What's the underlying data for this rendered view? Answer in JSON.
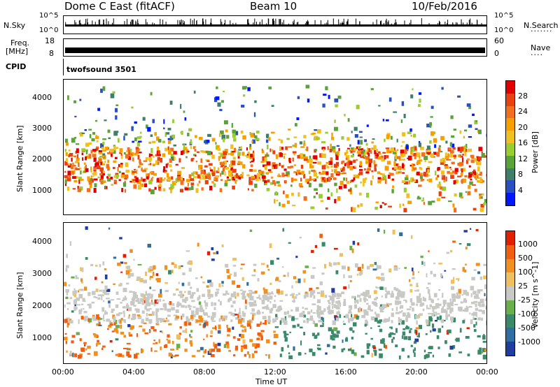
{
  "header": {
    "station": "Dome C East (fitACF)",
    "beam": "Beam 10",
    "date": "10/Feb/2016"
  },
  "strips": {
    "nsky_label": "N.Sky",
    "nsky_top": "10^5",
    "nsky_bottom": "10^0",
    "nsearch_label": "N.Search",
    "nsearch_top": "10^5",
    "nsearch_bottom": "10^0",
    "freq_label": "Freq.",
    "freq_unit": "[MHz]",
    "freq_top": "18",
    "freq_bottom": "8",
    "nave_label": "Nave",
    "nave_top": "60",
    "nave_bottom": "0",
    "cpid_label": "CPID",
    "cpid_value": "twofsound 3501"
  },
  "chart_data": [
    {
      "type": "heatmap",
      "title": "",
      "ylabel": "Slant Range [km]",
      "xlabel": "",
      "x_ticks": [
        "00:00",
        "04:00",
        "08:00",
        "12:00",
        "16:00",
        "20:00",
        "00:00"
      ],
      "y_ticks": [
        "1000",
        "2000",
        "3000",
        "4000"
      ],
      "ylim": [
        200,
        4600
      ],
      "colorbar": {
        "label": "Power [dB]",
        "ticks": [
          "4",
          "8",
          "12",
          "16",
          "20",
          "24",
          "28"
        ],
        "range": [
          0,
          32
        ],
        "colors": [
          "#0018ff",
          "#2a4fc0",
          "#3f7f6a",
          "#5aa33a",
          "#9acd32",
          "#f0c020",
          "#f6a000",
          "#f07020",
          "#e84010",
          "#e00000"
        ]
      }
    },
    {
      "type": "heatmap",
      "title": "",
      "ylabel": "Slant Range [km]",
      "xlabel": "Time UT",
      "x_ticks": [
        "00:00",
        "04:00",
        "08:00",
        "12:00",
        "16:00",
        "20:00",
        "00:00"
      ],
      "y_ticks": [
        "1000",
        "2000",
        "3000",
        "4000"
      ],
      "ylim": [
        200,
        4600
      ],
      "colorbar": {
        "label": "Velocity [m s^-1]",
        "ticks": [
          "1000",
          "500",
          "100",
          "25",
          "-25",
          "-100",
          "-500",
          "-1000"
        ],
        "colors": [
          "#1f3fa0",
          "#2f6ea0",
          "#3a8a6a",
          "#6ab04a",
          "#c8c8c4",
          "#f0c060",
          "#f09020",
          "#f06010",
          "#e02000"
        ]
      }
    }
  ]
}
